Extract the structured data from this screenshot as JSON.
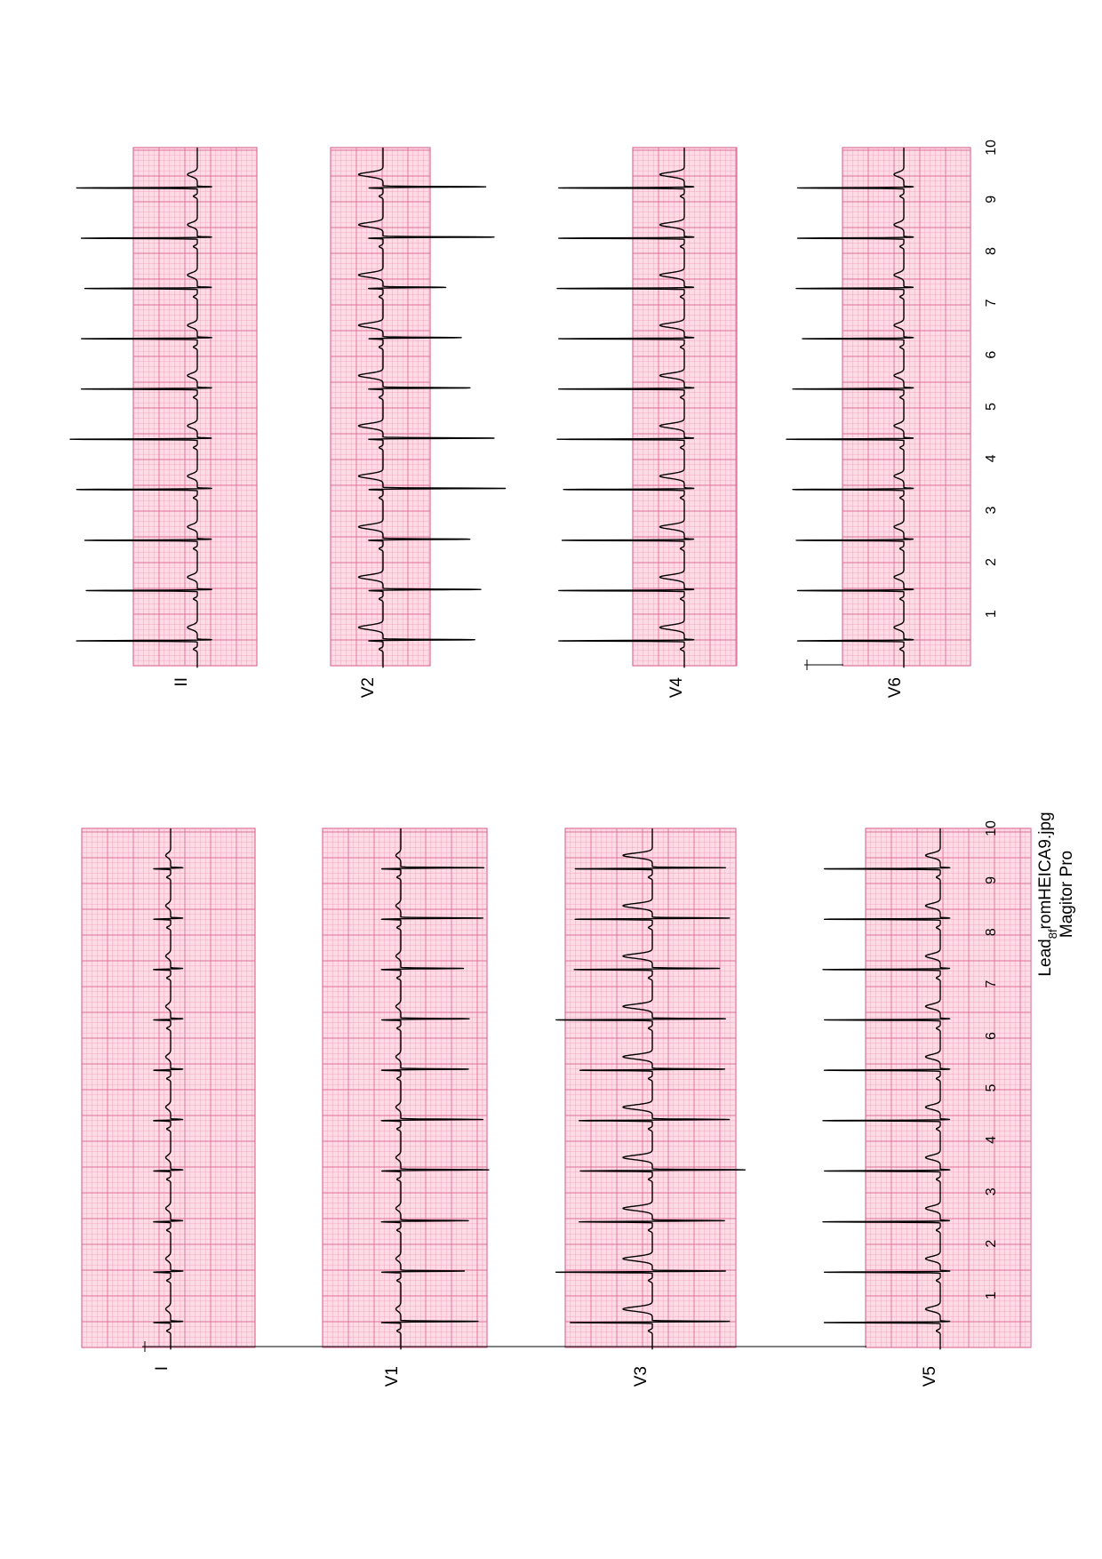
{
  "caption": {
    "line1": "Lead",
    "line1_sub": "8f",
    "line1_rest": "romHEICA9.jpg",
    "line2": "Magitor Pro"
  },
  "colors": {
    "grid_background": "#ffdbe6",
    "grid_minor": "#f3a9c3",
    "grid_major": "#dd6f98",
    "trace": "#000000"
  },
  "chart_data": [
    {
      "type": "line",
      "title": "",
      "xlabel": "",
      "ylabel": "",
      "xlim": [
        0,
        10
      ],
      "grid": true,
      "xticks": [
        1,
        2,
        3,
        4,
        5,
        6,
        7,
        8,
        9,
        10
      ],
      "beats_x": [
        0.48,
        1.45,
        2.42,
        3.4,
        4.37,
        5.34,
        6.31,
        7.28,
        8.25,
        9.22
      ],
      "series": [
        {
          "name": "I",
          "r_mv": [
            0.35,
            0.35,
            0.35,
            0.35,
            0.35,
            0.35,
            0.35,
            0.35,
            0.35,
            0.35
          ],
          "s_mv": [
            0.25,
            0.25,
            0.25,
            0.25,
            0.25,
            0.25,
            0.25,
            0.25,
            0.25,
            0.25
          ],
          "t_mv": 0.1
        },
        {
          "name": "V1",
          "r_mv": [
            0.4,
            0.4,
            0.4,
            0.4,
            0.4,
            0.4,
            0.4,
            0.4,
            0.4,
            0.4
          ],
          "s_mv": [
            1.6,
            1.3,
            1.4,
            1.8,
            1.7,
            1.4,
            1.4,
            1.3,
            1.7,
            1.7
          ],
          "t_mv": 0.1
        },
        {
          "name": "V3",
          "r_mv": [
            1.7,
            2.0,
            1.5,
            1.5,
            1.5,
            1.5,
            2.0,
            1.6,
            1.6,
            1.6
          ],
          "s_mv": [
            1.6,
            1.5,
            1.5,
            1.9,
            1.6,
            1.5,
            1.5,
            1.4,
            1.6,
            1.5
          ],
          "t_mv": 0.6
        },
        {
          "name": "V5",
          "r_mv": [
            2.4,
            2.4,
            2.4,
            2.4,
            2.4,
            2.4,
            2.4,
            2.4,
            2.4,
            2.4
          ],
          "s_mv": [
            0.2,
            0.2,
            0.2,
            0.2,
            0.2,
            0.2,
            0.2,
            0.2,
            0.2,
            0.2
          ],
          "t_mv": 0.3
        },
        {
          "name": "II",
          "r_mv": [
            2.5,
            2.3,
            2.3,
            2.5,
            2.6,
            2.4,
            2.4,
            2.3,
            2.4,
            2.5
          ],
          "s_mv": [
            0.3,
            0.3,
            0.3,
            0.3,
            0.3,
            0.3,
            0.3,
            0.3,
            0.3,
            0.3
          ],
          "t_mv": 0.2
        },
        {
          "name": "V2",
          "r_mv": [
            0.3,
            0.3,
            0.3,
            0.3,
            0.3,
            0.3,
            0.3,
            0.3,
            0.3,
            0.3
          ],
          "s_mv": [
            1.9,
            2.0,
            1.8,
            2.5,
            2.3,
            1.8,
            1.6,
            1.3,
            2.3,
            2.1
          ],
          "t_mv": 0.5
        },
        {
          "name": "V4",
          "r_mv": [
            2.6,
            2.6,
            2.5,
            2.5,
            2.6,
            2.6,
            2.6,
            2.6,
            2.6,
            2.6
          ],
          "s_mv": [
            0.2,
            0.2,
            0.2,
            0.2,
            0.2,
            0.2,
            0.2,
            0.2,
            0.2,
            0.2
          ],
          "t_mv": 0.5
        },
        {
          "name": "V6",
          "r_mv": [
            2.2,
            2.2,
            2.2,
            2.3,
            2.4,
            2.3,
            2.1,
            2.2,
            2.2,
            2.2
          ],
          "s_mv": [
            0.2,
            0.2,
            0.2,
            0.2,
            0.2,
            0.2,
            0.2,
            0.2,
            0.2,
            0.2
          ],
          "t_mv": 0.2
        }
      ]
    }
  ]
}
